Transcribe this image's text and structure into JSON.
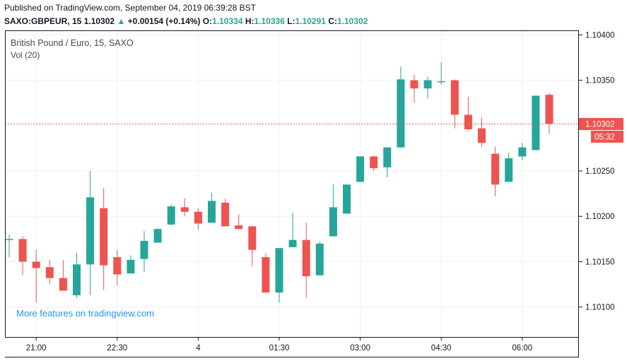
{
  "header": {
    "published": "Published on TradingView.com, September 04, 2019 06:39:28 BST",
    "symbol": "SAXO:GBPEUR, 15",
    "last": "1.10302",
    "change": "+0.00154 (+0.14%)",
    "o_label": "O:",
    "o": "1.10334",
    "h_label": "H:",
    "h": "1.10336",
    "l_label": "L:",
    "l": "1.10291",
    "c_label": "C:",
    "c": "1.10302"
  },
  "legend": {
    "title": "British Pound / Euro, 15, SAXO",
    "vol": "Vol (20)"
  },
  "watermark": "More features on tradingview.com",
  "price_tag": {
    "value": "1.10302",
    "countdown": "05:32"
  },
  "colors": {
    "up": "#26a69a",
    "down": "#ef5350",
    "grid": "#eef0f3",
    "axis": "#131722",
    "price_line": "#ef5350",
    "watermark": "#2196f3"
  },
  "chart_data": {
    "type": "candlestick",
    "y_ticks": [
      "1.10100",
      "1.10150",
      "1.10200",
      "1.10250",
      "1.10300",
      "1.10350",
      "1.10400"
    ],
    "x_ticks": [
      "21:00",
      "22:30",
      "4",
      "01:30",
      "03:00",
      "04:30",
      "06:00"
    ],
    "ylim": [
      1.10067,
      1.10405
    ],
    "candles": [
      {
        "o": 1.10175,
        "h": 1.1018,
        "l": 1.10155,
        "c": 1.10175
      },
      {
        "o": 1.10175,
        "h": 1.10178,
        "l": 1.10135,
        "c": 1.1015
      },
      {
        "o": 1.1015,
        "h": 1.10163,
        "l": 1.10105,
        "c": 1.10143
      },
      {
        "o": 1.10144,
        "h": 1.10152,
        "l": 1.10125,
        "c": 1.10132
      },
      {
        "o": 1.10132,
        "h": 1.10152,
        "l": 1.10119,
        "c": 1.10118
      },
      {
        "o": 1.10113,
        "h": 1.1016,
        "l": 1.1011,
        "c": 1.10147
      },
      {
        "o": 1.10147,
        "h": 1.1025,
        "l": 1.10113,
        "c": 1.10221
      },
      {
        "o": 1.10209,
        "h": 1.10231,
        "l": 1.10119,
        "c": 1.10146
      },
      {
        "o": 1.10155,
        "h": 1.10163,
        "l": 1.10124,
        "c": 1.10136
      },
      {
        "o": 1.10137,
        "h": 1.10157,
        "l": 1.10137,
        "c": 1.10152
      },
      {
        "o": 1.10153,
        "h": 1.10184,
        "l": 1.10139,
        "c": 1.10173
      },
      {
        "o": 1.10171,
        "h": 1.10187,
        "l": 1.10171,
        "c": 1.10186
      },
      {
        "o": 1.10191,
        "h": 1.10213,
        "l": 1.1019,
        "c": 1.10211
      },
      {
        "o": 1.1021,
        "h": 1.1022,
        "l": 1.102,
        "c": 1.10205
      },
      {
        "o": 1.10205,
        "h": 1.10209,
        "l": 1.10185,
        "c": 1.10192
      },
      {
        "o": 1.10193,
        "h": 1.10226,
        "l": 1.10193,
        "c": 1.10217
      },
      {
        "o": 1.10215,
        "h": 1.10219,
        "l": 1.10189,
        "c": 1.10189
      },
      {
        "o": 1.1019,
        "h": 1.10202,
        "l": 1.10186,
        "c": 1.10186
      },
      {
        "o": 1.10189,
        "h": 1.10189,
        "l": 1.10145,
        "c": 1.10163
      },
      {
        "o": 1.10155,
        "h": 1.10159,
        "l": 1.10116,
        "c": 1.10116
      },
      {
        "o": 1.10116,
        "h": 1.10165,
        "l": 1.10105,
        "c": 1.10165
      },
      {
        "o": 1.10166,
        "h": 1.10204,
        "l": 1.10166,
        "c": 1.10174
      },
      {
        "o": 1.10174,
        "h": 1.10193,
        "l": 1.1011,
        "c": 1.10134
      },
      {
        "o": 1.10135,
        "h": 1.10172,
        "l": 1.10135,
        "c": 1.1017
      },
      {
        "o": 1.10178,
        "h": 1.10235,
        "l": 1.10178,
        "c": 1.1021
      },
      {
        "o": 1.10203,
        "h": 1.10235,
        "l": 1.10203,
        "c": 1.10235
      },
      {
        "o": 1.10238,
        "h": 1.10265,
        "l": 1.10238,
        "c": 1.10266
      },
      {
        "o": 1.10266,
        "h": 1.10267,
        "l": 1.1025,
        "c": 1.10253
      },
      {
        "o": 1.10254,
        "h": 1.10276,
        "l": 1.10243,
        "c": 1.10276
      },
      {
        "o": 1.10276,
        "h": 1.10365,
        "l": 1.10276,
        "c": 1.10351
      },
      {
        "o": 1.1035,
        "h": 1.10356,
        "l": 1.10325,
        "c": 1.10341
      },
      {
        "o": 1.10341,
        "h": 1.10354,
        "l": 1.1033,
        "c": 1.1035
      },
      {
        "o": 1.10349,
        "h": 1.1037,
        "l": 1.10345,
        "c": 1.10349
      },
      {
        "o": 1.1035,
        "h": 1.10351,
        "l": 1.10297,
        "c": 1.10312
      },
      {
        "o": 1.10312,
        "h": 1.10332,
        "l": 1.10295,
        "c": 1.10296
      },
      {
        "o": 1.10297,
        "h": 1.10309,
        "l": 1.10277,
        "c": 1.10281
      },
      {
        "o": 1.10269,
        "h": 1.10277,
        "l": 1.10222,
        "c": 1.10235
      },
      {
        "o": 1.10238,
        "h": 1.1027,
        "l": 1.10238,
        "c": 1.10264
      },
      {
        "o": 1.10266,
        "h": 1.10281,
        "l": 1.10262,
        "c": 1.10276
      },
      {
        "o": 1.10273,
        "h": 1.10333,
        "l": 1.10273,
        "c": 1.10333
      },
      {
        "o": 1.10334,
        "h": 1.10336,
        "l": 1.10291,
        "c": 1.10302
      }
    ]
  }
}
